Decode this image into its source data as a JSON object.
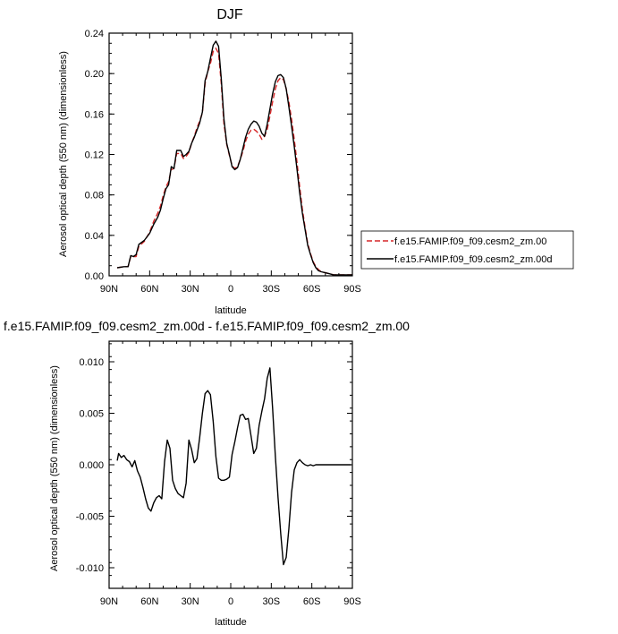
{
  "chart_data": [
    {
      "type": "line",
      "title": "DJF",
      "xlabel": "latitude",
      "ylabel": "Aerosol optical depth (550 nm) (dimensionless)",
      "xlim": [
        -90,
        90
      ],
      "ylim": [
        0,
        0.24
      ],
      "x_ticks": [
        -90,
        -60,
        -30,
        0,
        30,
        60,
        90
      ],
      "x_tick_labels": [
        "90N",
        "60N",
        "30N",
        "0",
        "30S",
        "60S",
        "90S"
      ],
      "y_ticks": [
        0,
        0.04,
        0.08,
        0.12,
        0.16,
        0.2,
        0.24
      ],
      "y_tick_labels": [
        "0.00",
        "0.04",
        "0.08",
        "0.12",
        "0.16",
        "0.20",
        "0.24"
      ],
      "legend": [
        {
          "label": "f.e15.FAMIP.f09_f09.cesm2_zm.00",
          "color": "#d62728",
          "dash": "dashed"
        },
        {
          "label": "f.e15.FAMIP.f09_f09.cesm2_zm.00d",
          "color": "#000000",
          "dash": "solid"
        }
      ],
      "series": [
        {
          "name": "f.e15.FAMIP.f09_f09.cesm2_zm.00",
          "x": [
            -84,
            -79,
            -76,
            -74,
            -72,
            -70,
            -68,
            -64,
            -60,
            -57,
            -54,
            -52,
            -50,
            -48,
            -46,
            -44,
            -42,
            -40,
            -37,
            -35,
            -33,
            -31,
            -29,
            -27,
            -25,
            -23,
            -21,
            -19,
            -17,
            -15,
            -13,
            -11,
            -9,
            -7,
            -5,
            -3,
            -1,
            1,
            3,
            5,
            7,
            9,
            11,
            13,
            15,
            17,
            19,
            21,
            23,
            25,
            27,
            29,
            31,
            33,
            35,
            37,
            39,
            41,
            43,
            45,
            47,
            49,
            51,
            53,
            55,
            57,
            59,
            61,
            63,
            65,
            67,
            70,
            73,
            76,
            80,
            85,
            90
          ],
          "values": [
            0.008,
            0.009,
            0.009,
            0.019,
            0.019,
            0.019,
            0.029,
            0.034,
            0.043,
            0.054,
            0.062,
            0.069,
            0.079,
            0.088,
            0.093,
            0.105,
            0.106,
            0.121,
            0.121,
            0.116,
            0.118,
            0.122,
            0.131,
            0.138,
            0.146,
            0.153,
            0.161,
            0.19,
            0.202,
            0.21,
            0.222,
            0.225,
            0.22,
            0.19,
            0.15,
            0.13,
            0.119,
            0.109,
            0.106,
            0.108,
            0.115,
            0.123,
            0.133,
            0.14,
            0.144,
            0.145,
            0.143,
            0.14,
            0.135,
            0.138,
            0.145,
            0.158,
            0.172,
            0.185,
            0.193,
            0.196,
            0.194,
            0.185,
            0.172,
            0.155,
            0.135,
            0.113,
            0.088,
            0.066,
            0.048,
            0.032,
            0.022,
            0.014,
            0.009,
            0.006,
            0.004,
            0.003,
            0.002,
            0.001,
            0.001,
            0.001,
            0.001
          ]
        },
        {
          "name": "f.e15.FAMIP.f09_f09.cesm2_zm.00d",
          "x": [
            -84,
            -79,
            -76,
            -74,
            -72,
            -70,
            -68,
            -64,
            -60,
            -57,
            -54,
            -52,
            -50,
            -48,
            -46,
            -44,
            -42,
            -40,
            -37,
            -35,
            -33,
            -31,
            -29,
            -27,
            -25,
            -23,
            -21,
            -19,
            -17,
            -15,
            -13,
            -11,
            -9,
            -7,
            -5,
            -3,
            -1,
            1,
            3,
            5,
            7,
            9,
            11,
            13,
            15,
            17,
            19,
            21,
            23,
            25,
            27,
            29,
            31,
            33,
            35,
            37,
            39,
            41,
            43,
            45,
            47,
            49,
            51,
            53,
            55,
            57,
            59,
            61,
            63,
            65,
            67,
            70,
            73,
            76,
            80,
            85,
            90
          ],
          "values": [
            0.008,
            0.009,
            0.009,
            0.02,
            0.019,
            0.021,
            0.031,
            0.035,
            0.042,
            0.051,
            0.058,
            0.065,
            0.076,
            0.086,
            0.09,
            0.108,
            0.106,
            0.124,
            0.124,
            0.118,
            0.12,
            0.123,
            0.131,
            0.137,
            0.144,
            0.151,
            0.162,
            0.193,
            0.202,
            0.215,
            0.228,
            0.232,
            0.227,
            0.195,
            0.155,
            0.131,
            0.12,
            0.108,
            0.105,
            0.107,
            0.115,
            0.126,
            0.137,
            0.145,
            0.15,
            0.153,
            0.152,
            0.148,
            0.141,
            0.138,
            0.15,
            0.165,
            0.18,
            0.192,
            0.198,
            0.199,
            0.196,
            0.185,
            0.167,
            0.148,
            0.128,
            0.106,
            0.082,
            0.062,
            0.046,
            0.03,
            0.021,
            0.013,
            0.008,
            0.005,
            0.004,
            0.003,
            0.002,
            0.001,
            0.001,
            0.001,
            0.001
          ]
        }
      ]
    },
    {
      "type": "line",
      "title": "f.e15.FAMIP.f09_f09.cesm2_zm.00d - f.e15.FAMIP.f09_f09.cesm2_zm.00",
      "xlabel": "latitude",
      "ylabel": "Aerosol optical depth (550 nm) (dimensionless)",
      "xlim": [
        -90,
        90
      ],
      "ylim": [
        -0.012,
        0.012
      ],
      "x_ticks": [
        -90,
        -60,
        -30,
        0,
        30,
        60,
        90
      ],
      "x_tick_labels": [
        "90N",
        "60N",
        "30N",
        "0",
        "30S",
        "60S",
        "90S"
      ],
      "y_ticks": [
        -0.01,
        -0.005,
        0,
        0.005,
        0.01
      ],
      "y_tick_labels": [
        "-0.010",
        "-0.005",
        "0.000",
        "0.005",
        "0.010"
      ],
      "series": [
        {
          "name": "f.e15.FAMIP.f09_f09.cesm2_zm.00d - f.e15.FAMIP.f09_f09.cesm2_zm.00",
          "x": [
            -84,
            -83,
            -81,
            -79,
            -77,
            -75,
            -73,
            -71,
            -69,
            -67,
            -65,
            -63,
            -61,
            -59,
            -57,
            -55,
            -53,
            -51,
            -49,
            -47,
            -45,
            -43,
            -41,
            -39,
            -37,
            -35,
            -33,
            -31,
            -29,
            -27,
            -25,
            -23,
            -21,
            -19,
            -17,
            -15,
            -13,
            -11,
            -9,
            -7,
            -5,
            -3,
            -1,
            1,
            3,
            5,
            7,
            9,
            11,
            13,
            15,
            17,
            19,
            21,
            23,
            25,
            27,
            29,
            31,
            33,
            35,
            37,
            39,
            41,
            43,
            45,
            47,
            49,
            51,
            53,
            55,
            57,
            59,
            61,
            63,
            65,
            67,
            69,
            71,
            73,
            75,
            77,
            79,
            81,
            83,
            85,
            87,
            89
          ],
          "values": [
            0.0004,
            0.0011,
            0.0007,
            0.0009,
            0.0005,
            0.0003,
            -0.0002,
            0.0004,
            -0.0006,
            -0.0012,
            -0.0022,
            -0.0033,
            -0.0042,
            -0.0045,
            -0.0037,
            -0.0032,
            -0.003,
            -0.0033,
            0.0003,
            0.0024,
            0.0016,
            -0.0015,
            -0.0023,
            -0.0028,
            -0.003,
            -0.0032,
            -0.0018,
            0.0024,
            0.0015,
            0.0002,
            0.0006,
            0.0026,
            0.005,
            0.0069,
            0.0072,
            0.0068,
            0.0042,
            0.0008,
            -0.0013,
            -0.0015,
            -0.0015,
            -0.0014,
            -0.0012,
            0.001,
            0.0022,
            0.0036,
            0.0048,
            0.0049,
            0.0044,
            0.0045,
            0.0028,
            0.0011,
            0.0016,
            0.0038,
            0.0052,
            0.0064,
            0.0084,
            0.0094,
            0.0055,
            0.0008,
            -0.0032,
            -0.0067,
            -0.0097,
            -0.009,
            -0.0062,
            -0.0027,
            -0.0005,
            0.0002,
            0.0005,
            0.0002,
            0.0,
            -0.0001,
            0.0,
            -0.0001,
            0.0,
            0.0,
            0.0,
            0.0,
            0.0,
            0.0,
            0.0,
            0.0,
            0.0,
            0.0,
            0.0,
            0.0,
            0.0,
            0.0
          ]
        }
      ]
    }
  ]
}
